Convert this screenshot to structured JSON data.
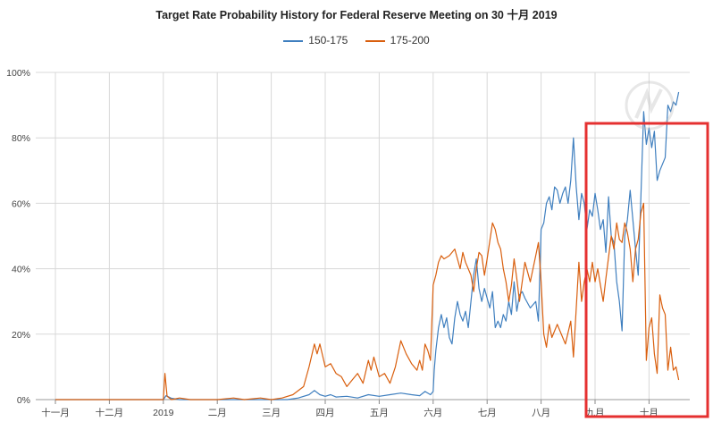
{
  "chart_data": {
    "type": "line",
    "title": "Target Rate Probability History for Federal Reserve Meeting on 30 十月 2019",
    "xlabel": "",
    "ylabel": "",
    "x_ticks": [
      "十一月",
      "十二月",
      "2019",
      "二月",
      "三月",
      "四月",
      "五月",
      "六月",
      "七月",
      "八月",
      "九月",
      "十月"
    ],
    "y_ticks": [
      "0%",
      "20%",
      "40%",
      "60%",
      "80%",
      "100%"
    ],
    "ylim": [
      0,
      100
    ],
    "grid": true,
    "legend_position": "top-center",
    "x_units": "months since 十一月 2018 start",
    "series": [
      {
        "name": "150-175",
        "color": "#3f7fbf",
        "points": [
          [
            0,
            0
          ],
          [
            1,
            0
          ],
          [
            2,
            0
          ],
          [
            2.05,
            1.2
          ],
          [
            2.15,
            0.4
          ],
          [
            2.3,
            0
          ],
          [
            2.5,
            0
          ],
          [
            3,
            0
          ],
          [
            4,
            0
          ],
          [
            4.3,
            0
          ],
          [
            4.5,
            0.5
          ],
          [
            4.7,
            1.5
          ],
          [
            4.8,
            2.8
          ],
          [
            4.9,
            1.5
          ],
          [
            5.0,
            1
          ],
          [
            5.1,
            1.5
          ],
          [
            5.2,
            0.8
          ],
          [
            5.4,
            1
          ],
          [
            5.6,
            0.5
          ],
          [
            5.8,
            1.5
          ],
          [
            6.0,
            1
          ],
          [
            6.2,
            1.5
          ],
          [
            6.4,
            2
          ],
          [
            6.6,
            1.5
          ],
          [
            6.75,
            1.2
          ],
          [
            6.85,
            2.5
          ],
          [
            6.95,
            1.5
          ],
          [
            7.0,
            2.5
          ],
          [
            7.02,
            9
          ],
          [
            7.05,
            15
          ],
          [
            7.1,
            22
          ],
          [
            7.15,
            26
          ],
          [
            7.2,
            22
          ],
          [
            7.25,
            25
          ],
          [
            7.3,
            19
          ],
          [
            7.35,
            17
          ],
          [
            7.4,
            25
          ],
          [
            7.45,
            30
          ],
          [
            7.5,
            26
          ],
          [
            7.55,
            24
          ],
          [
            7.6,
            27
          ],
          [
            7.65,
            22
          ],
          [
            7.7,
            30
          ],
          [
            7.75,
            38
          ],
          [
            7.8,
            43
          ],
          [
            7.85,
            34
          ],
          [
            7.9,
            30
          ],
          [
            7.95,
            34
          ],
          [
            8.0,
            31
          ],
          [
            8.05,
            28
          ],
          [
            8.1,
            33
          ],
          [
            8.15,
            22
          ],
          [
            8.2,
            24
          ],
          [
            8.25,
            22
          ],
          [
            8.3,
            26
          ],
          [
            8.35,
            24
          ],
          [
            8.4,
            30
          ],
          [
            8.45,
            26
          ],
          [
            8.5,
            36
          ],
          [
            8.55,
            27
          ],
          [
            8.6,
            32
          ],
          [
            8.65,
            33
          ],
          [
            8.7,
            31
          ],
          [
            8.8,
            28
          ],
          [
            8.9,
            30
          ],
          [
            8.95,
            24
          ],
          [
            9.0,
            52
          ],
          [
            9.05,
            54
          ],
          [
            9.1,
            60
          ],
          [
            9.15,
            62
          ],
          [
            9.2,
            58
          ],
          [
            9.25,
            65
          ],
          [
            9.3,
            64
          ],
          [
            9.35,
            60
          ],
          [
            9.4,
            63
          ],
          [
            9.45,
            65
          ],
          [
            9.5,
            60
          ],
          [
            9.55,
            67
          ],
          [
            9.6,
            80
          ],
          [
            9.65,
            65
          ],
          [
            9.7,
            55
          ],
          [
            9.75,
            63
          ],
          [
            9.8,
            60
          ],
          [
            9.85,
            52
          ],
          [
            9.9,
            58
          ],
          [
            9.95,
            56
          ],
          [
            10.0,
            63
          ],
          [
            10.05,
            58
          ],
          [
            10.1,
            52
          ],
          [
            10.15,
            55
          ],
          [
            10.2,
            45
          ],
          [
            10.25,
            62
          ],
          [
            10.3,
            50
          ],
          [
            10.35,
            48
          ],
          [
            10.4,
            36
          ],
          [
            10.45,
            30
          ],
          [
            10.5,
            21
          ],
          [
            10.55,
            50
          ],
          [
            10.6,
            55
          ],
          [
            10.65,
            64
          ],
          [
            10.7,
            55
          ],
          [
            10.75,
            46
          ],
          [
            10.8,
            38
          ],
          [
            10.85,
            62
          ],
          [
            10.9,
            88
          ],
          [
            10.95,
            78
          ],
          [
            11.0,
            83
          ],
          [
            11.05,
            77
          ],
          [
            11.1,
            82
          ],
          [
            11.15,
            67
          ],
          [
            11.2,
            70
          ],
          [
            11.3,
            74
          ],
          [
            11.35,
            90
          ],
          [
            11.4,
            88
          ],
          [
            11.45,
            91
          ],
          [
            11.5,
            90
          ],
          [
            11.55,
            94
          ]
        ]
      },
      {
        "name": "175-200",
        "color": "#d95f0e",
        "points": [
          [
            0,
            0
          ],
          [
            1,
            0
          ],
          [
            2,
            0
          ],
          [
            2.03,
            8
          ],
          [
            2.07,
            1
          ],
          [
            2.15,
            0
          ],
          [
            2.3,
            0.5
          ],
          [
            2.5,
            0
          ],
          [
            3,
            0
          ],
          [
            3.3,
            0.5
          ],
          [
            3.5,
            0
          ],
          [
            3.8,
            0.5
          ],
          [
            4.0,
            0
          ],
          [
            4.2,
            0.5
          ],
          [
            4.4,
            1.5
          ],
          [
            4.6,
            4
          ],
          [
            4.7,
            10
          ],
          [
            4.8,
            17
          ],
          [
            4.85,
            14
          ],
          [
            4.9,
            17
          ],
          [
            5.0,
            10
          ],
          [
            5.1,
            11
          ],
          [
            5.2,
            8
          ],
          [
            5.3,
            7
          ],
          [
            5.4,
            4
          ],
          [
            5.5,
            6
          ],
          [
            5.6,
            8
          ],
          [
            5.7,
            5
          ],
          [
            5.8,
            12
          ],
          [
            5.85,
            9
          ],
          [
            5.9,
            13
          ],
          [
            6.0,
            7
          ],
          [
            6.1,
            8
          ],
          [
            6.2,
            5
          ],
          [
            6.3,
            10
          ],
          [
            6.4,
            18
          ],
          [
            6.5,
            14
          ],
          [
            6.6,
            11
          ],
          [
            6.7,
            9
          ],
          [
            6.75,
            12
          ],
          [
            6.8,
            9
          ],
          [
            6.85,
            17
          ],
          [
            6.9,
            15
          ],
          [
            6.95,
            12
          ],
          [
            7.0,
            35
          ],
          [
            7.05,
            38
          ],
          [
            7.1,
            42
          ],
          [
            7.15,
            44
          ],
          [
            7.2,
            43
          ],
          [
            7.3,
            44
          ],
          [
            7.4,
            46
          ],
          [
            7.5,
            40
          ],
          [
            7.55,
            45
          ],
          [
            7.6,
            42
          ],
          [
            7.7,
            38
          ],
          [
            7.75,
            33
          ],
          [
            7.8,
            40
          ],
          [
            7.85,
            45
          ],
          [
            7.9,
            44
          ],
          [
            7.95,
            38
          ],
          [
            8.0,
            43
          ],
          [
            8.1,
            54
          ],
          [
            8.15,
            52
          ],
          [
            8.2,
            48
          ],
          [
            8.25,
            46
          ],
          [
            8.3,
            40
          ],
          [
            8.35,
            36
          ],
          [
            8.4,
            30
          ],
          [
            8.45,
            35
          ],
          [
            8.5,
            43
          ],
          [
            8.55,
            37
          ],
          [
            8.6,
            30
          ],
          [
            8.7,
            42
          ],
          [
            8.8,
            36
          ],
          [
            8.9,
            44
          ],
          [
            8.95,
            48
          ],
          [
            9.0,
            36
          ],
          [
            9.05,
            20
          ],
          [
            9.1,
            16
          ],
          [
            9.15,
            23
          ],
          [
            9.2,
            19
          ],
          [
            9.3,
            23
          ],
          [
            9.35,
            21
          ],
          [
            9.45,
            17
          ],
          [
            9.55,
            24
          ],
          [
            9.6,
            13
          ],
          [
            9.7,
            42
          ],
          [
            9.75,
            30
          ],
          [
            9.8,
            36
          ],
          [
            9.85,
            40
          ],
          [
            9.9,
            36
          ],
          [
            9.95,
            42
          ],
          [
            10.0,
            36
          ],
          [
            10.05,
            40
          ],
          [
            10.1,
            35
          ],
          [
            10.15,
            30
          ],
          [
            10.2,
            37
          ],
          [
            10.3,
            50
          ],
          [
            10.35,
            46
          ],
          [
            10.4,
            54
          ],
          [
            10.45,
            49
          ],
          [
            10.5,
            48
          ],
          [
            10.55,
            54
          ],
          [
            10.6,
            51
          ],
          [
            10.65,
            46
          ],
          [
            10.7,
            36
          ],
          [
            10.75,
            46
          ],
          [
            10.8,
            49
          ],
          [
            10.85,
            57
          ],
          [
            10.9,
            60
          ],
          [
            10.95,
            12
          ],
          [
            11.0,
            22
          ],
          [
            11.05,
            25
          ],
          [
            11.1,
            14
          ],
          [
            11.15,
            8
          ],
          [
            11.2,
            32
          ],
          [
            11.25,
            28
          ],
          [
            11.3,
            26
          ],
          [
            11.35,
            9
          ],
          [
            11.4,
            16
          ],
          [
            11.45,
            9
          ],
          [
            11.5,
            10
          ],
          [
            11.55,
            6
          ]
        ]
      }
    ]
  }
}
